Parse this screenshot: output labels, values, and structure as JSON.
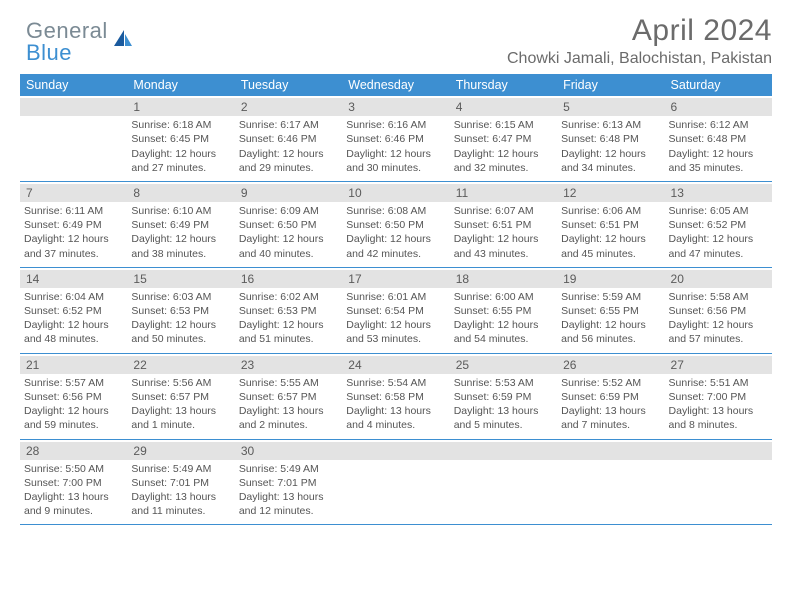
{
  "logo": {
    "top": "General",
    "bottom": "Blue"
  },
  "title": "April 2024",
  "location": "Chowki Jamali, Balochistan, Pakistan",
  "colors": {
    "header_bg": "#3d8fd1",
    "header_text": "#ffffff",
    "daynum_bg": "#e3e3e3",
    "border": "#3d8fd1",
    "body_text": "#555555",
    "title_text": "#6b6b6b"
  },
  "day_headers": [
    "Sunday",
    "Monday",
    "Tuesday",
    "Wednesday",
    "Thursday",
    "Friday",
    "Saturday"
  ],
  "weeks": [
    [
      {
        "num": "",
        "sunrise": "",
        "sunset": "",
        "daylight": ""
      },
      {
        "num": "1",
        "sunrise": "Sunrise: 6:18 AM",
        "sunset": "Sunset: 6:45 PM",
        "daylight": "Daylight: 12 hours and 27 minutes."
      },
      {
        "num": "2",
        "sunrise": "Sunrise: 6:17 AM",
        "sunset": "Sunset: 6:46 PM",
        "daylight": "Daylight: 12 hours and 29 minutes."
      },
      {
        "num": "3",
        "sunrise": "Sunrise: 6:16 AM",
        "sunset": "Sunset: 6:46 PM",
        "daylight": "Daylight: 12 hours and 30 minutes."
      },
      {
        "num": "4",
        "sunrise": "Sunrise: 6:15 AM",
        "sunset": "Sunset: 6:47 PM",
        "daylight": "Daylight: 12 hours and 32 minutes."
      },
      {
        "num": "5",
        "sunrise": "Sunrise: 6:13 AM",
        "sunset": "Sunset: 6:48 PM",
        "daylight": "Daylight: 12 hours and 34 minutes."
      },
      {
        "num": "6",
        "sunrise": "Sunrise: 6:12 AM",
        "sunset": "Sunset: 6:48 PM",
        "daylight": "Daylight: 12 hours and 35 minutes."
      }
    ],
    [
      {
        "num": "7",
        "sunrise": "Sunrise: 6:11 AM",
        "sunset": "Sunset: 6:49 PM",
        "daylight": "Daylight: 12 hours and 37 minutes."
      },
      {
        "num": "8",
        "sunrise": "Sunrise: 6:10 AM",
        "sunset": "Sunset: 6:49 PM",
        "daylight": "Daylight: 12 hours and 38 minutes."
      },
      {
        "num": "9",
        "sunrise": "Sunrise: 6:09 AM",
        "sunset": "Sunset: 6:50 PM",
        "daylight": "Daylight: 12 hours and 40 minutes."
      },
      {
        "num": "10",
        "sunrise": "Sunrise: 6:08 AM",
        "sunset": "Sunset: 6:50 PM",
        "daylight": "Daylight: 12 hours and 42 minutes."
      },
      {
        "num": "11",
        "sunrise": "Sunrise: 6:07 AM",
        "sunset": "Sunset: 6:51 PM",
        "daylight": "Daylight: 12 hours and 43 minutes."
      },
      {
        "num": "12",
        "sunrise": "Sunrise: 6:06 AM",
        "sunset": "Sunset: 6:51 PM",
        "daylight": "Daylight: 12 hours and 45 minutes."
      },
      {
        "num": "13",
        "sunrise": "Sunrise: 6:05 AM",
        "sunset": "Sunset: 6:52 PM",
        "daylight": "Daylight: 12 hours and 47 minutes."
      }
    ],
    [
      {
        "num": "14",
        "sunrise": "Sunrise: 6:04 AM",
        "sunset": "Sunset: 6:52 PM",
        "daylight": "Daylight: 12 hours and 48 minutes."
      },
      {
        "num": "15",
        "sunrise": "Sunrise: 6:03 AM",
        "sunset": "Sunset: 6:53 PM",
        "daylight": "Daylight: 12 hours and 50 minutes."
      },
      {
        "num": "16",
        "sunrise": "Sunrise: 6:02 AM",
        "sunset": "Sunset: 6:53 PM",
        "daylight": "Daylight: 12 hours and 51 minutes."
      },
      {
        "num": "17",
        "sunrise": "Sunrise: 6:01 AM",
        "sunset": "Sunset: 6:54 PM",
        "daylight": "Daylight: 12 hours and 53 minutes."
      },
      {
        "num": "18",
        "sunrise": "Sunrise: 6:00 AM",
        "sunset": "Sunset: 6:55 PM",
        "daylight": "Daylight: 12 hours and 54 minutes."
      },
      {
        "num": "19",
        "sunrise": "Sunrise: 5:59 AM",
        "sunset": "Sunset: 6:55 PM",
        "daylight": "Daylight: 12 hours and 56 minutes."
      },
      {
        "num": "20",
        "sunrise": "Sunrise: 5:58 AM",
        "sunset": "Sunset: 6:56 PM",
        "daylight": "Daylight: 12 hours and 57 minutes."
      }
    ],
    [
      {
        "num": "21",
        "sunrise": "Sunrise: 5:57 AM",
        "sunset": "Sunset: 6:56 PM",
        "daylight": "Daylight: 12 hours and 59 minutes."
      },
      {
        "num": "22",
        "sunrise": "Sunrise: 5:56 AM",
        "sunset": "Sunset: 6:57 PM",
        "daylight": "Daylight: 13 hours and 1 minute."
      },
      {
        "num": "23",
        "sunrise": "Sunrise: 5:55 AM",
        "sunset": "Sunset: 6:57 PM",
        "daylight": "Daylight: 13 hours and 2 minutes."
      },
      {
        "num": "24",
        "sunrise": "Sunrise: 5:54 AM",
        "sunset": "Sunset: 6:58 PM",
        "daylight": "Daylight: 13 hours and 4 minutes."
      },
      {
        "num": "25",
        "sunrise": "Sunrise: 5:53 AM",
        "sunset": "Sunset: 6:59 PM",
        "daylight": "Daylight: 13 hours and 5 minutes."
      },
      {
        "num": "26",
        "sunrise": "Sunrise: 5:52 AM",
        "sunset": "Sunset: 6:59 PM",
        "daylight": "Daylight: 13 hours and 7 minutes."
      },
      {
        "num": "27",
        "sunrise": "Sunrise: 5:51 AM",
        "sunset": "Sunset: 7:00 PM",
        "daylight": "Daylight: 13 hours and 8 minutes."
      }
    ],
    [
      {
        "num": "28",
        "sunrise": "Sunrise: 5:50 AM",
        "sunset": "Sunset: 7:00 PM",
        "daylight": "Daylight: 13 hours and 9 minutes."
      },
      {
        "num": "29",
        "sunrise": "Sunrise: 5:49 AM",
        "sunset": "Sunset: 7:01 PM",
        "daylight": "Daylight: 13 hours and 11 minutes."
      },
      {
        "num": "30",
        "sunrise": "Sunrise: 5:49 AM",
        "sunset": "Sunset: 7:01 PM",
        "daylight": "Daylight: 13 hours and 12 minutes."
      },
      {
        "num": "",
        "sunrise": "",
        "sunset": "",
        "daylight": ""
      },
      {
        "num": "",
        "sunrise": "",
        "sunset": "",
        "daylight": ""
      },
      {
        "num": "",
        "sunrise": "",
        "sunset": "",
        "daylight": ""
      },
      {
        "num": "",
        "sunrise": "",
        "sunset": "",
        "daylight": ""
      }
    ]
  ]
}
